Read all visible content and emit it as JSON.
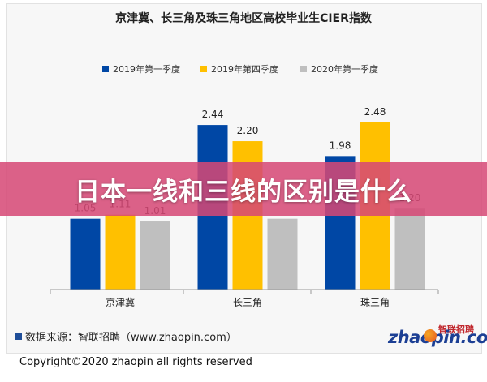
{
  "overlay_title": "日本一线和三线的区别是什么",
  "source_label": "数据来源：智联招聘（www.zhaopin.com）",
  "logo": {
    "wordmark": "zhaopin.com",
    "cn": "智联招聘"
  },
  "copyright": "Copyright©2020 zhaopin all rights reserved",
  "colors": {
    "s1": "#0047a5",
    "s2": "#ffc000",
    "s3": "#bfbfbf"
  },
  "chart_data": {
    "type": "bar",
    "title": "京津冀、长三角及珠三角地区高校毕业生CIER指数",
    "categories": [
      "京津冀",
      "长三角",
      "珠三角"
    ],
    "series": [
      {
        "name": "2019年第一季度",
        "values": [
          1.05,
          2.44,
          1.98
        ],
        "labels": [
          "1.05",
          "2.44",
          "1.98"
        ]
      },
      {
        "name": "2019年第四季度",
        "values": [
          1.11,
          2.2,
          2.48
        ],
        "labels": [
          "1.11",
          "2.20",
          "2.48"
        ]
      },
      {
        "name": "2020年第一季度",
        "values": [
          1.01,
          1.05,
          1.2
        ],
        "labels": [
          "1.01",
          "",
          "1.20"
        ]
      }
    ],
    "ylim": [
      0,
      2.85
    ],
    "grid": false,
    "legend": "top"
  }
}
